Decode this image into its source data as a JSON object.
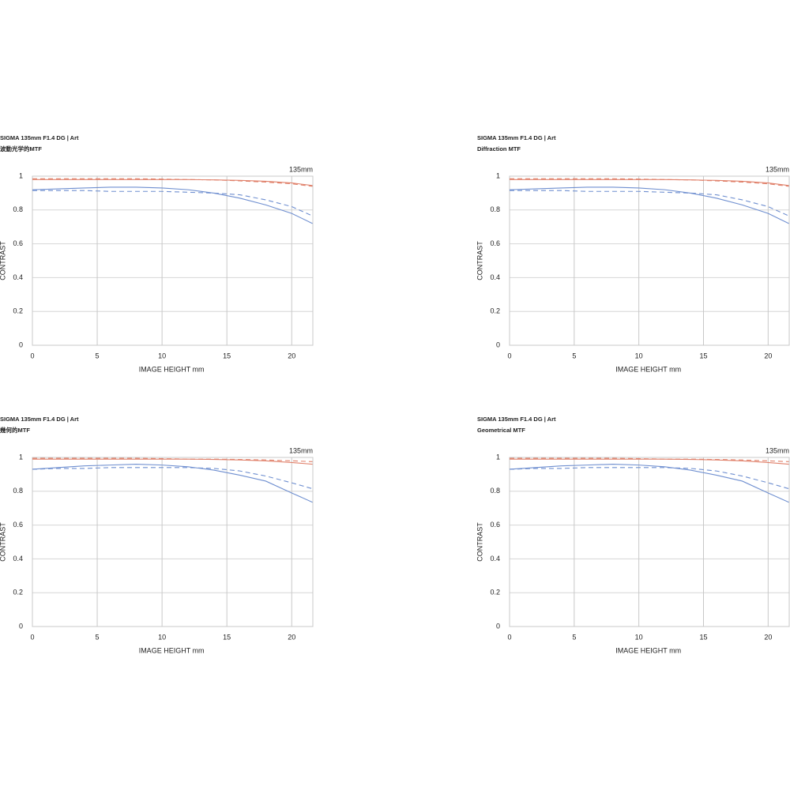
{
  "chart_data": [
    {
      "type": "line",
      "title": "SIGMA 135mm F1.4 DG | Art",
      "subtitle": "波動光学的MTF",
      "annotation": "135mm",
      "xlabel": "IMAGE HEIGHT  mm",
      "ylabel": "CONTRAST",
      "x": [
        0,
        2,
        4,
        6,
        8,
        10,
        12,
        14,
        16,
        18,
        20,
        21.6
      ],
      "series": [
        {
          "color": "#e0806a",
          "dash": false,
          "values": [
            0.98,
            0.98,
            0.98,
            0.98,
            0.98,
            0.98,
            0.98,
            0.978,
            0.975,
            0.97,
            0.96,
            0.945
          ]
        },
        {
          "color": "#e0806a",
          "dash": true,
          "values": [
            0.985,
            0.985,
            0.985,
            0.985,
            0.985,
            0.983,
            0.98,
            0.978,
            0.972,
            0.965,
            0.955,
            0.94
          ]
        },
        {
          "color": "#6f8fd0",
          "dash": false,
          "values": [
            0.92,
            0.925,
            0.93,
            0.935,
            0.935,
            0.93,
            0.92,
            0.9,
            0.87,
            0.83,
            0.78,
            0.72
          ]
        },
        {
          "color": "#6f8fd0",
          "dash": true,
          "values": [
            0.915,
            0.915,
            0.915,
            0.91,
            0.91,
            0.91,
            0.905,
            0.9,
            0.89,
            0.86,
            0.82,
            0.765
          ]
        }
      ],
      "xlim": [
        0,
        21.63
      ],
      "ylim": [
        0,
        1
      ],
      "xticks": [
        0,
        5,
        10,
        15,
        20
      ],
      "yticks": [
        0,
        0.2,
        0.4,
        0.6,
        0.8,
        1
      ],
      "grid": true
    },
    {
      "type": "line",
      "title": "SIGMA 135mm F1.4 DG | Art",
      "subtitle": "Diffraction MTF",
      "annotation": "135mm",
      "xlabel": "IMAGE HEIGHT  mm",
      "ylabel": "CONTRAST",
      "x": [
        0,
        2,
        4,
        6,
        8,
        10,
        12,
        14,
        16,
        18,
        20,
        21.6
      ],
      "series": [
        {
          "color": "#e0806a",
          "dash": false,
          "values": [
            0.98,
            0.98,
            0.98,
            0.98,
            0.98,
            0.98,
            0.98,
            0.978,
            0.975,
            0.97,
            0.96,
            0.945
          ]
        },
        {
          "color": "#e0806a",
          "dash": true,
          "values": [
            0.985,
            0.985,
            0.985,
            0.985,
            0.985,
            0.983,
            0.98,
            0.978,
            0.972,
            0.965,
            0.955,
            0.94
          ]
        },
        {
          "color": "#6f8fd0",
          "dash": false,
          "values": [
            0.92,
            0.925,
            0.93,
            0.935,
            0.935,
            0.93,
            0.92,
            0.9,
            0.87,
            0.83,
            0.78,
            0.72
          ]
        },
        {
          "color": "#6f8fd0",
          "dash": true,
          "values": [
            0.915,
            0.915,
            0.915,
            0.91,
            0.91,
            0.91,
            0.905,
            0.9,
            0.89,
            0.86,
            0.82,
            0.765
          ]
        }
      ],
      "xlim": [
        0,
        21.63
      ],
      "ylim": [
        0,
        1
      ],
      "xticks": [
        0,
        5,
        10,
        15,
        20
      ],
      "yticks": [
        0,
        0.2,
        0.4,
        0.6,
        0.8,
        1
      ],
      "grid": true
    },
    {
      "type": "line",
      "title": "SIGMA 135mm F1.4 DG | Art",
      "subtitle": "幾何的MTF",
      "annotation": "135mm",
      "xlabel": "IMAGE HEIGHT  mm",
      "ylabel": "CONTRAST",
      "x": [
        0,
        2,
        4,
        6,
        8,
        10,
        12,
        14,
        16,
        18,
        20,
        21.6
      ],
      "series": [
        {
          "color": "#e0806a",
          "dash": false,
          "values": [
            0.99,
            0.99,
            0.99,
            0.99,
            0.99,
            0.99,
            0.99,
            0.988,
            0.985,
            0.98,
            0.97,
            0.96
          ]
        },
        {
          "color": "#e0806a",
          "dash": true,
          "values": [
            0.995,
            0.995,
            0.995,
            0.995,
            0.995,
            0.993,
            0.99,
            0.99,
            0.988,
            0.985,
            0.98,
            0.975
          ]
        },
        {
          "color": "#6f8fd0",
          "dash": false,
          "values": [
            0.93,
            0.94,
            0.95,
            0.955,
            0.96,
            0.955,
            0.945,
            0.925,
            0.895,
            0.86,
            0.79,
            0.735
          ]
        },
        {
          "color": "#6f8fd0",
          "dash": true,
          "values": [
            0.93,
            0.935,
            0.935,
            0.94,
            0.94,
            0.94,
            0.94,
            0.935,
            0.92,
            0.89,
            0.85,
            0.815
          ]
        }
      ],
      "xlim": [
        0,
        21.63
      ],
      "ylim": [
        0,
        1
      ],
      "xticks": [
        0,
        5,
        10,
        15,
        20
      ],
      "yticks": [
        0,
        0.2,
        0.4,
        0.6,
        0.8,
        1
      ],
      "grid": true
    },
    {
      "type": "line",
      "title": "SIGMA 135mm F1.4 DG | Art",
      "subtitle": "Geometrical MTF",
      "annotation": "135mm",
      "xlabel": "IMAGE HEIGHT  mm",
      "ylabel": "CONTRAST",
      "x": [
        0,
        2,
        4,
        6,
        8,
        10,
        12,
        14,
        16,
        18,
        20,
        21.6
      ],
      "series": [
        {
          "color": "#e0806a",
          "dash": false,
          "values": [
            0.99,
            0.99,
            0.99,
            0.99,
            0.99,
            0.99,
            0.99,
            0.988,
            0.985,
            0.98,
            0.97,
            0.96
          ]
        },
        {
          "color": "#e0806a",
          "dash": true,
          "values": [
            0.995,
            0.995,
            0.995,
            0.995,
            0.995,
            0.993,
            0.99,
            0.99,
            0.988,
            0.985,
            0.98,
            0.975
          ]
        },
        {
          "color": "#6f8fd0",
          "dash": false,
          "values": [
            0.93,
            0.94,
            0.95,
            0.955,
            0.96,
            0.955,
            0.945,
            0.925,
            0.895,
            0.86,
            0.79,
            0.735
          ]
        },
        {
          "color": "#6f8fd0",
          "dash": true,
          "values": [
            0.93,
            0.935,
            0.935,
            0.94,
            0.94,
            0.94,
            0.94,
            0.935,
            0.92,
            0.89,
            0.85,
            0.815
          ]
        }
      ],
      "xlim": [
        0,
        21.63
      ],
      "ylim": [
        0,
        1
      ],
      "xticks": [
        0,
        5,
        10,
        15,
        20
      ],
      "yticks": [
        0,
        0.2,
        0.4,
        0.6,
        0.8,
        1
      ],
      "grid": true
    }
  ]
}
